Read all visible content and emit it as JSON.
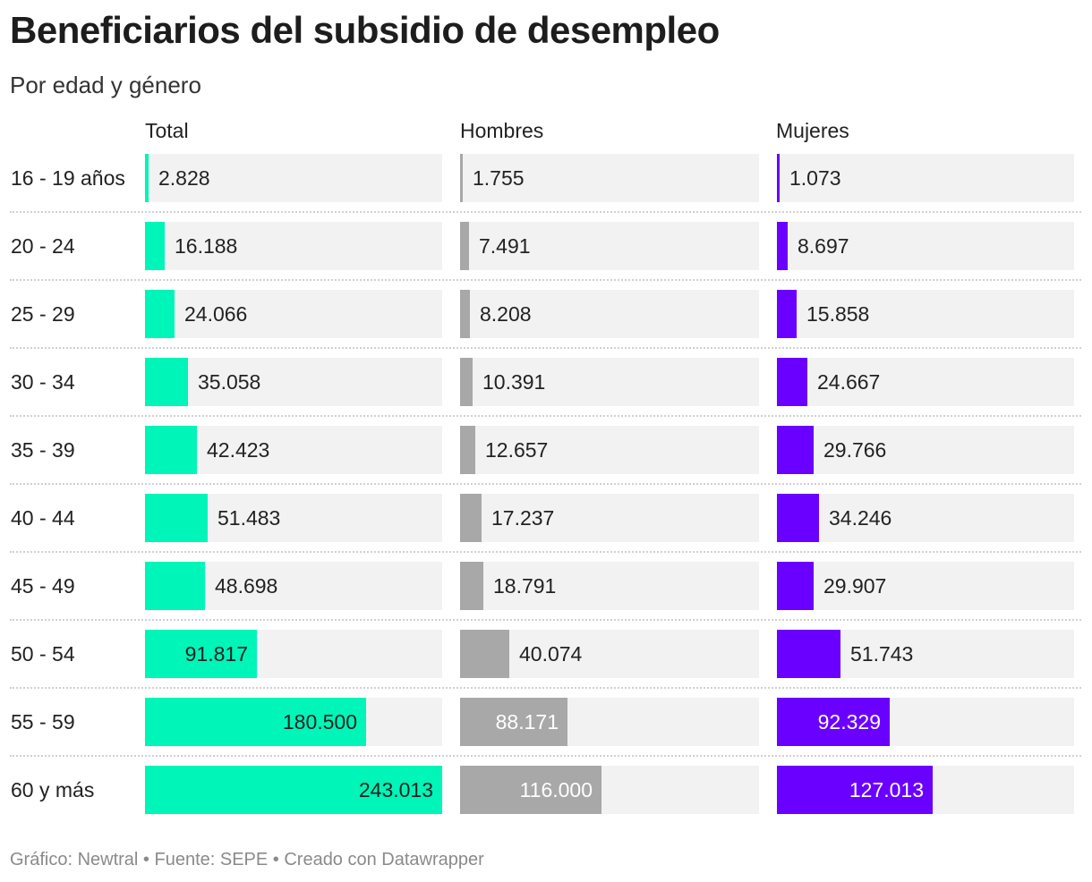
{
  "chart_data": {
    "type": "bar",
    "title": "Beneficiarios del subsidio de desempleo",
    "subtitle": "Por edad y género",
    "categories": [
      "16 - 19 años",
      "20 - 24",
      "25 - 29",
      "30 - 34",
      "35 - 39",
      "40 - 44",
      "45 - 49",
      "50 - 54",
      "55 - 59",
      "60 y más"
    ],
    "series": [
      {
        "name": "Total",
        "color": "#00f5b8",
        "values": [
          2828,
          16188,
          24066,
          35058,
          42423,
          51483,
          48698,
          91817,
          180500,
          243013
        ],
        "labels": [
          "2.828",
          "16.188",
          "24.066",
          "35.058",
          "42.423",
          "51.483",
          "48.698",
          "91.817",
          "180.500",
          "243.013"
        ]
      },
      {
        "name": "Hombres",
        "color": "#a8a8a8",
        "values": [
          1755,
          7491,
          8208,
          10391,
          12657,
          17237,
          18791,
          40074,
          88171,
          116000
        ],
        "labels": [
          "1.755",
          "7.491",
          "8.208",
          "10.391",
          "12.657",
          "17.237",
          "18.791",
          "40.074",
          "88.171",
          "116.000"
        ]
      },
      {
        "name": "Mujeres",
        "color": "#6a00ff",
        "values": [
          1073,
          8697,
          15858,
          24667,
          29766,
          34246,
          29907,
          51743,
          92329,
          127013
        ],
        "labels": [
          "1.073",
          "8.697",
          "15.858",
          "24.667",
          "29.766",
          "34.246",
          "29.907",
          "51.743",
          "92.329",
          "127.013"
        ]
      }
    ],
    "xlim": [
      0,
      243013
    ],
    "footer": "Gráfico: Newtral • Fuente: SEPE • Creado con Datawrapper"
  }
}
